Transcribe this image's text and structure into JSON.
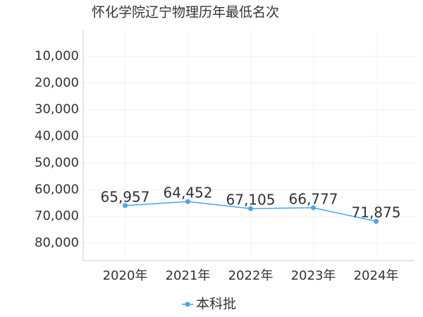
{
  "chart_data": {
    "type": "line",
    "title": "怀化学院辽宁物理历年最低名次",
    "categories": [
      "2020年",
      "2021年",
      "2022年",
      "2023年",
      "2024年"
    ],
    "series": [
      {
        "name": "本科批",
        "color": "#4ba3ef",
        "values": [
          65957,
          64452,
          67105,
          66777,
          71875
        ],
        "value_labels": [
          "65,957",
          "64,452",
          "67,105",
          "66,777",
          "71,875"
        ]
      }
    ],
    "ylim": [
      86600,
      0
    ],
    "yticks": [
      {
        "value": 10000,
        "label": "10,000"
      },
      {
        "value": 20000,
        "label": "20,000"
      },
      {
        "value": 30000,
        "label": "30,000"
      },
      {
        "value": 40000,
        "label": "40,000"
      },
      {
        "value": 50000,
        "label": "50,000"
      },
      {
        "value": 60000,
        "label": "60,000"
      },
      {
        "value": 70000,
        "label": "70,000"
      },
      {
        "value": 80000,
        "label": "80,000"
      }
    ],
    "grid": true,
    "legend": "bottom"
  }
}
